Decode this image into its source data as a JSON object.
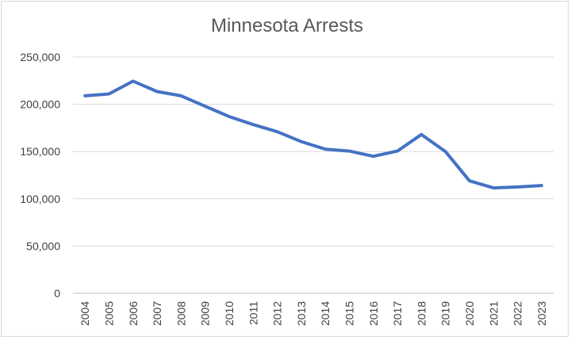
{
  "chart_data": {
    "type": "line",
    "title": "Minnesota Arrests",
    "xlabel": "",
    "ylabel": "",
    "categories": [
      "2004",
      "2005",
      "2006",
      "2007",
      "2008",
      "2009",
      "2010",
      "2011",
      "2012",
      "2013",
      "2014",
      "2015",
      "2016",
      "2017",
      "2018",
      "2019",
      "2020",
      "2021",
      "2022",
      "2023"
    ],
    "series": [
      {
        "name": "",
        "color": "#4472C4",
        "values": [
          209000,
          211000,
          224500,
          213500,
          209000,
          198000,
          187000,
          178500,
          171000,
          160500,
          152500,
          150500,
          145000,
          150500,
          168000,
          150000,
          119000,
          111500,
          112500,
          114000
        ]
      }
    ],
    "ylim": [
      0,
      250000
    ],
    "yticks": [
      0,
      50000,
      100000,
      150000,
      200000,
      250000
    ],
    "ytick_labels": [
      "0",
      "50,000",
      "100,000",
      "150,000",
      "200,000",
      "250,000"
    ],
    "grid": true,
    "legend": "none"
  }
}
